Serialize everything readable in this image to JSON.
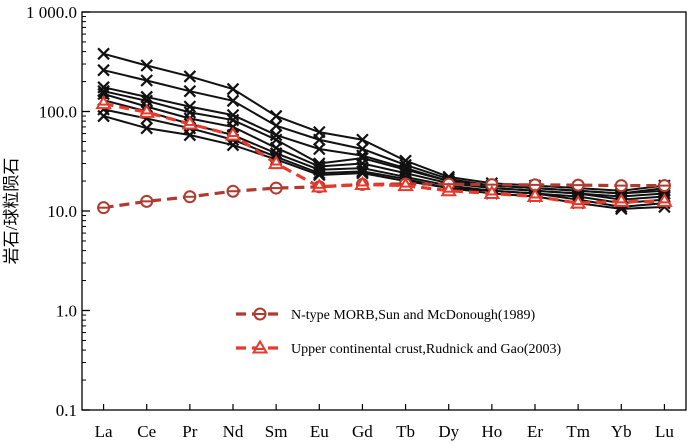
{
  "chart_data": {
    "type": "line",
    "title": "",
    "xlabel": "",
    "ylabel": "岩石/球粒陨石",
    "y_scale": "log",
    "ylim": [
      0.1,
      1000
    ],
    "y_ticks": [
      0.1,
      1.0,
      10.0,
      100.0,
      1000.0
    ],
    "y_tick_labels": [
      "0.1",
      "1.0",
      "10.0",
      "100.0",
      "1 000.0"
    ],
    "categories": [
      "La",
      "Ce",
      "Pr",
      "Nd",
      "Sm",
      "Eu",
      "Gd",
      "Tb",
      "Dy",
      "Ho",
      "Er",
      "Tm",
      "Yb",
      "Lu"
    ],
    "grid": false,
    "legend_position": "bottom-right",
    "sample_color": "#111111",
    "samples": [
      [
        380,
        290,
        225,
        168,
        90,
        62,
        52,
        32,
        22,
        19,
        18,
        17,
        16,
        18
      ],
      [
        260,
        205,
        160,
        128,
        72,
        52,
        42,
        29,
        21,
        18,
        17,
        16,
        15,
        17
      ],
      [
        175,
        140,
        112,
        92,
        58,
        42,
        36,
        27,
        20,
        18,
        17,
        16,
        15,
        16
      ],
      [
        160,
        128,
        98,
        82,
        52,
        30,
        34,
        26,
        20,
        17,
        16,
        15,
        14,
        15
      ],
      [
        150,
        112,
        85,
        70,
        43,
        28,
        30,
        24,
        19,
        17,
        16,
        15,
        13,
        14
      ],
      [
        130,
        100,
        75,
        58,
        38,
        26,
        27,
        22,
        18,
        16,
        15,
        14,
        12,
        13
      ],
      [
        105,
        85,
        68,
        52,
        35,
        24,
        25,
        21,
        17,
        16,
        15,
        13,
        11,
        12
      ],
      [
        90,
        68,
        58,
        46,
        33,
        23,
        24,
        20,
        17,
        15,
        14,
        12,
        10.5,
        11
      ]
    ],
    "series": [
      {
        "name": "N-type MORB,Sun and McDonough(1989)",
        "color": "#b03a2e",
        "marker": "circle",
        "values": [
          10.8,
          12.5,
          13.9,
          15.8,
          17.0,
          17.5,
          18.5,
          18.7,
          18.6,
          18.4,
          18.3,
          18.2,
          18.0,
          18.0
        ]
      },
      {
        "name": "Upper continental crust,Rudnick and Gao(2003)",
        "color": "#e8392b",
        "marker": "triangle",
        "values": [
          120,
          98,
          75,
          58,
          30,
          17.5,
          18.5,
          18.0,
          16.0,
          15.0,
          14.0,
          12.0,
          12.5,
          12.5
        ]
      }
    ]
  }
}
